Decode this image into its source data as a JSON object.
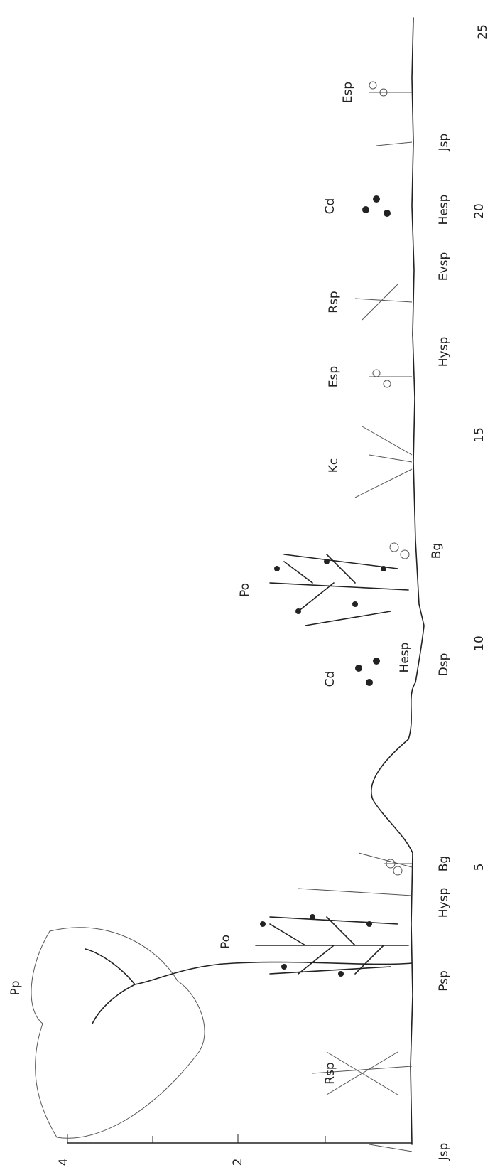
{
  "profile": {
    "top_label": "Pp",
    "plant_labels": [
      "Rsp",
      "Po",
      "Cd",
      "Hesp",
      "Po",
      "Kc",
      "Esp",
      "Rsp",
      "Cd",
      "Esp"
    ],
    "ground_labels": [
      "Jsp",
      "Psp",
      "Hysp",
      "Bg",
      "Dsp",
      "Bg",
      "Hysp",
      "Evsp",
      "Hesp",
      "Jsp"
    ],
    "distance_ticks": [
      5,
      10,
      15,
      20,
      25
    ],
    "height_ticks": [
      4,
      2
    ]
  }
}
